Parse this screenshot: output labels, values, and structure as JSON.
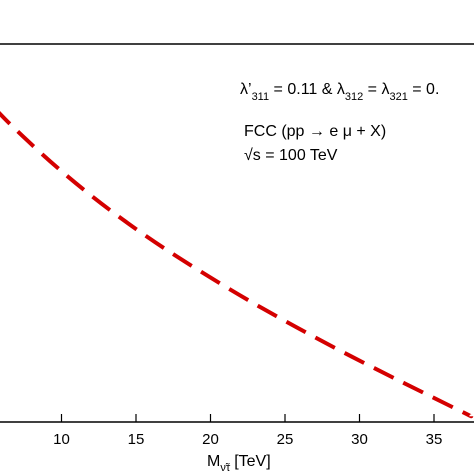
{
  "chart_data": {
    "type": "line",
    "title": "",
    "xlabel": "M",
    "xlabel_sub": "ν̃τ",
    "xlabel_unit": "[TeV]",
    "ylabel": "",
    "xlim": [
      5.5,
      37.5
    ],
    "x_ticks": [
      10,
      15,
      20,
      25,
      30,
      35
    ],
    "x_tick_labels": [
      "10",
      "15",
      "20",
      "25",
      "30",
      "35"
    ],
    "grid": false,
    "annotations": {
      "couplings": {
        "lam1": "λ’",
        "lam1_sub": "311",
        "part1": " = 0.11 & ",
        "lam2": "λ",
        "lam2_sub": "312",
        "part2": " = ",
        "lam3": "λ",
        "lam3_sub": "321",
        "part3": " = 0."
      },
      "process": "FCC (pp → e μ + X)",
      "sqrt_s_symbol": "√s",
      "energy": " = 100 TeV"
    },
    "series": [
      {
        "style": "dashed",
        "color": "#d40000",
        "x": [
          5.5,
          7,
          10,
          13,
          16,
          19,
          22,
          25,
          28,
          31,
          34,
          37.5
        ],
        "y_frac": [
          0.83,
          0.77,
          0.662,
          0.567,
          0.482,
          0.406,
          0.334,
          0.267,
          0.203,
          0.142,
          0.083,
          0.015
        ]
      }
    ]
  }
}
